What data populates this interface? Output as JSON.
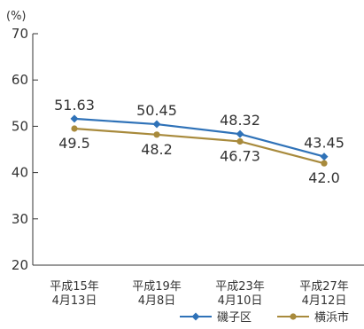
{
  "chart_data": {
    "type": "line",
    "title": "",
    "xlabel": "",
    "ylabel": "(%)",
    "ylim": [
      20,
      70
    ],
    "yticks": [
      20,
      30,
      40,
      50,
      60,
      70
    ],
    "grid": false,
    "legend_position": "bottom-right",
    "categories": [
      [
        "平成15年",
        "4月13日"
      ],
      [
        "平成19年",
        "4月8日"
      ],
      [
        "平成23年",
        "4月10日"
      ],
      [
        "平成27年",
        "4月12日"
      ]
    ],
    "series": [
      {
        "name": "磯子区",
        "color": "#2f72b8",
        "marker": "diamond",
        "values": [
          51.63,
          50.45,
          48.32,
          43.45
        ],
        "labels": [
          "51.63",
          "50.45",
          "48.32",
          "43.45"
        ],
        "label_position": "above"
      },
      {
        "name": "横浜市",
        "color": "#a88a3c",
        "marker": "circle",
        "values": [
          49.5,
          48.2,
          46.73,
          42.0
        ],
        "labels": [
          "49.5",
          "48.2",
          "46.73",
          "42.0"
        ],
        "label_position": "below"
      }
    ]
  }
}
